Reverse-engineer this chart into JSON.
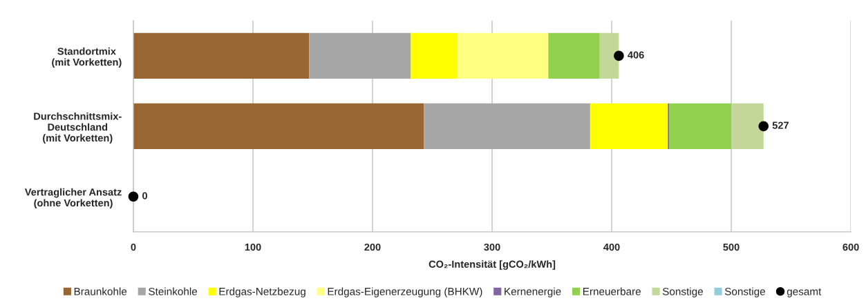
{
  "chart_data": {
    "type": "bar",
    "orientation": "horizontal",
    "stacked": true,
    "categories": [
      "Standortmix\n(mit Vorketten)",
      "Durchschnittsmix-\nDeutschland\n(mit Vorketten)",
      "Vertraglicher Ansatz\n(ohne Vorketten)"
    ],
    "series": [
      {
        "name": "Braunkohle",
        "color": "#996633",
        "values": [
          147,
          243,
          null
        ]
      },
      {
        "name": "Steinkohle",
        "color": "#a6a6a6",
        "values": [
          85,
          139,
          null
        ]
      },
      {
        "name": "Erdgas-Netzbezug",
        "color": "#ffff00",
        "values": [
          39,
          65,
          null
        ]
      },
      {
        "name": "Erdgas-Eigenerzeugung (BHKW)",
        "color": "#ffff80",
        "values": [
          76,
          null,
          null
        ]
      },
      {
        "name": "Kernenergie",
        "color": "#8064a2",
        "values": [
          null,
          1,
          null
        ]
      },
      {
        "name": "Erneuerbare",
        "color": "#92d050",
        "values": [
          43,
          52,
          null
        ]
      },
      {
        "name": "Sonstige",
        "color": "#c4d79b",
        "values": [
          16,
          27,
          null
        ]
      },
      {
        "name": "Sonstige",
        "color": "#92cddc",
        "values": [
          null,
          null,
          null
        ]
      },
      {
        "name": "gesamt",
        "type": "scatter",
        "marker": "circle",
        "color": "#000000",
        "values": [
          406,
          527,
          0
        ],
        "value_labels": [
          "406",
          "527",
          "0"
        ]
      }
    ],
    "xlabel": "CO₂-Intensität [gCO₂/kWh]",
    "xlim": [
      0,
      600
    ],
    "xticks": [
      0,
      100,
      200,
      300,
      400,
      500,
      600
    ],
    "grid": "x",
    "legend": "bottom"
  }
}
